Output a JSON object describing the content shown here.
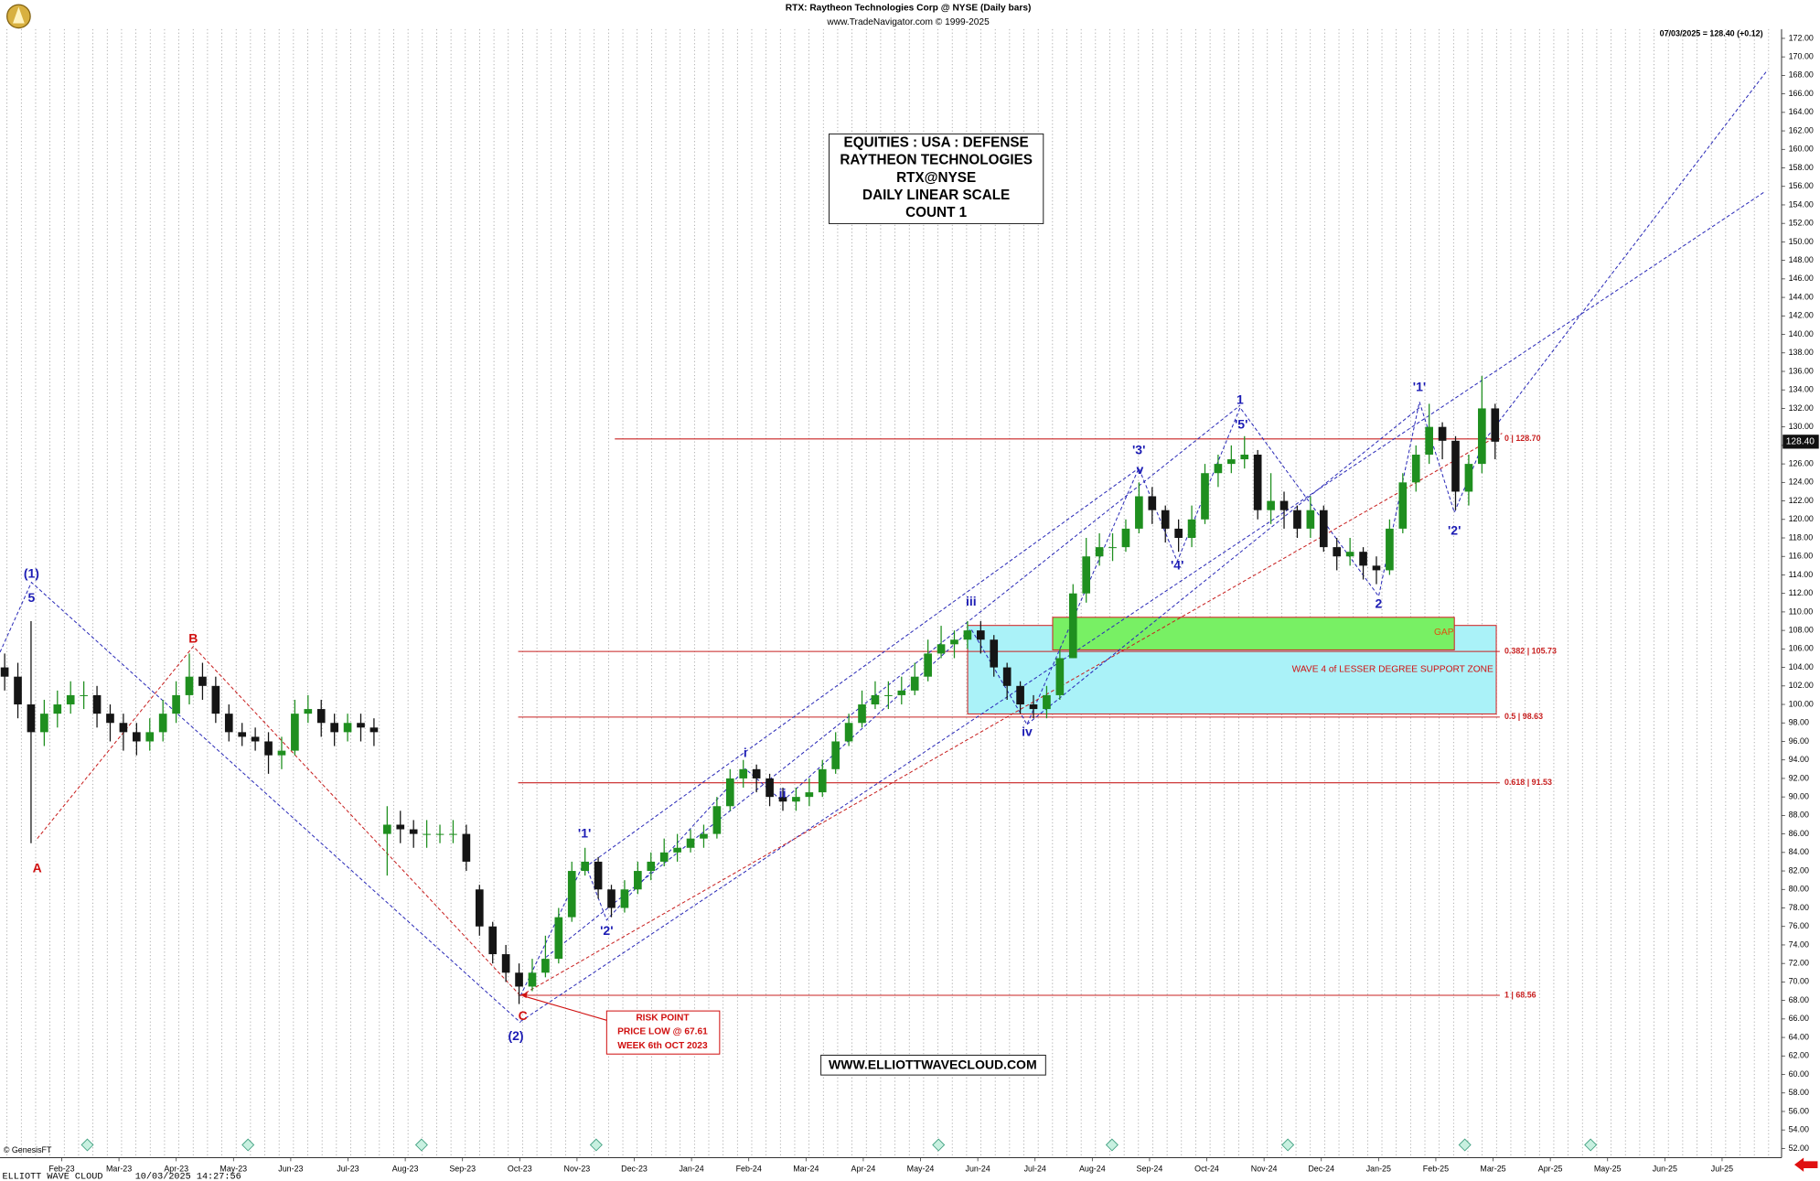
{
  "chart_data": {
    "type": "candlestick",
    "title": "RTX:  Raytheon Technologies Corp @ NYSE  (Daily bars)",
    "subtitle": "www.TradeNavigator.com © 1999-2025",
    "last_quote": "07/03/2025 = 128.40 (+0.12)",
    "last_price": {
      "value": 128.4,
      "label": "128.40"
    },
    "categories": [
      "Feb-23",
      "Mar-23",
      "Apr-23",
      "May-23",
      "Jun-23",
      "Jul-23",
      "Aug-23",
      "Sep-23",
      "Oct-23",
      "Nov-23",
      "Dec-23",
      "Jan-24",
      "Feb-24",
      "Mar-24",
      "Apr-24",
      "May-24",
      "Jun-24",
      "Jul-24",
      "Aug-24",
      "Sep-24",
      "Oct-24",
      "Nov-24",
      "Dec-24",
      "Jan-25",
      "Feb-25",
      "Mar-25",
      "Apr-25",
      "May-25",
      "Jun-25",
      "Jul-25"
    ],
    "open": [
      104,
      103,
      100,
      97,
      99,
      100,
      101,
      101,
      99,
      98,
      97,
      96,
      97,
      99,
      101,
      103,
      102,
      99,
      97,
      96.5,
      96,
      94.5,
      95,
      99,
      99.5,
      98,
      97,
      98,
      97.5,
      86,
      87,
      86.5,
      86,
      86,
      86,
      86,
      80,
      76,
      73,
      71,
      69.5,
      71,
      72.5,
      77,
      82,
      83,
      80,
      78,
      80,
      82,
      83,
      84,
      84.5,
      85.5,
      86,
      89,
      92,
      93,
      92,
      90,
      89.5,
      90,
      90.5,
      93,
      96,
      98,
      100,
      101,
      101,
      101.5,
      103,
      105.5,
      106.5,
      107,
      108,
      107,
      104,
      102,
      100,
      99.5,
      101,
      105,
      112,
      116,
      117,
      117,
      119,
      122.5,
      121,
      119,
      118,
      120,
      125,
      126,
      126.5,
      127,
      121,
      122,
      121,
      119,
      121,
      117,
      116,
      116.5,
      115,
      114.5,
      119,
      124,
      127,
      130,
      128.5,
      123,
      126,
      132
    ],
    "high": [
      105.5,
      104.5,
      109,
      100.5,
      101.5,
      102.5,
      102.5,
      102,
      100,
      99,
      98,
      98.5,
      100.5,
      102.5,
      105.5,
      104.5,
      103,
      100,
      98,
      97.5,
      97,
      96.5,
      100.5,
      101,
      100.5,
      99,
      99,
      99,
      98.5,
      89,
      88.5,
      87.5,
      87.5,
      87,
      87.5,
      87,
      80.5,
      76.5,
      74,
      72,
      72.5,
      75,
      78,
      83,
      84.5,
      83.5,
      80.5,
      81,
      83,
      84,
      85.5,
      86,
      86.5,
      87,
      90,
      93,
      94,
      93.5,
      92.5,
      91,
      91,
      92,
      94,
      97,
      99,
      101.5,
      102.5,
      102.5,
      103,
      104.5,
      107,
      108.5,
      108,
      109,
      109,
      107.5,
      104.5,
      102.5,
      101,
      102,
      106,
      113,
      118,
      118.5,
      118.5,
      120,
      124,
      123.5,
      121.5,
      120,
      121.5,
      126,
      127,
      128,
      129,
      127.5,
      125,
      123,
      121.5,
      122.5,
      121.5,
      118,
      118,
      117,
      116,
      120,
      125,
      128,
      132.5,
      130.5,
      129,
      127,
      135.5,
      132.5
    ],
    "low": [
      101.5,
      98.5,
      85,
      95.5,
      97.5,
      99,
      99.5,
      97.5,
      96,
      95,
      94.5,
      95,
      96,
      98,
      100,
      100.5,
      98,
      96,
      95.5,
      95,
      92.5,
      93,
      94.5,
      98,
      96.5,
      95.5,
      96,
      96,
      95.5,
      81.5,
      85,
      84.5,
      84.5,
      85,
      85,
      82,
      75,
      72,
      70,
      67.61,
      69,
      70.5,
      72,
      76.5,
      81.5,
      79,
      77,
      77.5,
      79.5,
      81,
      82.5,
      83,
      84,
      84.5,
      85.5,
      88.5,
      91,
      90.5,
      89,
      88.5,
      88.5,
      89,
      90,
      92.5,
      95.5,
      97.5,
      99.5,
      99.5,
      100,
      101,
      102.5,
      105,
      105,
      106,
      105.5,
      103,
      100.5,
      99,
      98.5,
      98.5,
      100.5,
      105,
      111,
      115,
      115.5,
      116.5,
      118.5,
      119.5,
      117.5,
      116.5,
      117,
      119.5,
      123.5,
      125,
      125.5,
      120,
      119.5,
      119,
      118,
      118,
      116.5,
      114.5,
      115,
      113.5,
      113,
      114,
      118.5,
      123,
      126,
      126.5,
      121,
      121.5,
      125,
      126.5
    ],
    "close": [
      103,
      100,
      97,
      99,
      100,
      101,
      101,
      99,
      98,
      97,
      96,
      97,
      99,
      101,
      103,
      102,
      99,
      97,
      96.5,
      96,
      94.5,
      95,
      99,
      99.5,
      98,
      97,
      98,
      97.5,
      97,
      87,
      86.5,
      86,
      86,
      86,
      86,
      83,
      76,
      73,
      71,
      69.5,
      71,
      72.5,
      77,
      82,
      83,
      80,
      78,
      80,
      82,
      83,
      84,
      84.5,
      85.5,
      86,
      89,
      92,
      93,
      92,
      90,
      89.5,
      90,
      90.5,
      93,
      96,
      98,
      100,
      101,
      101,
      101.5,
      103,
      105.5,
      106.5,
      107,
      108,
      107,
      104,
      102,
      100,
      99.5,
      101,
      105,
      112,
      116,
      117,
      117,
      119,
      122.5,
      121,
      119,
      118,
      120,
      125,
      126,
      126.5,
      127,
      121,
      122,
      121,
      119,
      121,
      117,
      116,
      116.5,
      115,
      114.5,
      119,
      124,
      127,
      130,
      128.5,
      123,
      126,
      132,
      128.4
    ],
    "up_color": "#1f8f1f",
    "down_color": "#151515",
    "ylim": [
      51,
      173
    ],
    "yticks": [
      {
        "value": 52,
        "label": "52.00"
      },
      {
        "value": 54,
        "label": "54.00"
      },
      {
        "value": 56,
        "label": "56.00"
      },
      {
        "value": 58,
        "label": "58.00"
      },
      {
        "value": 60,
        "label": "60.00"
      },
      {
        "value": 62,
        "label": "62.00"
      },
      {
        "value": 64,
        "label": "64.00"
      },
      {
        "value": 66,
        "label": "66.00"
      },
      {
        "value": 68,
        "label": "68.00"
      },
      {
        "value": 70,
        "label": "70.00"
      },
      {
        "value": 72,
        "label": "72.00"
      },
      {
        "value": 74,
        "label": "74.00"
      },
      {
        "value": 76,
        "label": "76.00"
      },
      {
        "value": 78,
        "label": "78.00"
      },
      {
        "value": 80,
        "label": "80.00"
      },
      {
        "value": 82,
        "label": "82.00"
      },
      {
        "value": 84,
        "label": "84.00"
      },
      {
        "value": 86,
        "label": "86.00"
      },
      {
        "value": 88,
        "label": "88.00"
      },
      {
        "value": 90,
        "label": "90.00"
      },
      {
        "value": 92,
        "label": "92.00"
      },
      {
        "value": 94,
        "label": "94.00"
      },
      {
        "value": 96,
        "label": "96.00"
      },
      {
        "value": 98,
        "label": "98.00"
      },
      {
        "value": 100,
        "label": "100.00"
      },
      {
        "value": 102,
        "label": "102.00"
      },
      {
        "value": 104,
        "label": "104.00"
      },
      {
        "value": 106,
        "label": "106.00"
      },
      {
        "value": 108,
        "label": "108.00"
      },
      {
        "value": 110,
        "label": "110.00"
      },
      {
        "value": 112,
        "label": "112.00"
      },
      {
        "value": 114,
        "label": "114.00"
      },
      {
        "value": 116,
        "label": "116.00"
      },
      {
        "value": 118,
        "label": "118.00"
      },
      {
        "value": 120,
        "label": "120.00"
      },
      {
        "value": 122,
        "label": "122.00"
      },
      {
        "value": 124,
        "label": "124.00"
      },
      {
        "value": 126,
        "label": "126.00"
      },
      {
        "value": 128,
        "label": "128.00"
      },
      {
        "value": 130,
        "label": "130.00"
      },
      {
        "value": 132,
        "label": "132.00"
      },
      {
        "value": 134,
        "label": "134.00"
      },
      {
        "value": 136,
        "label": "136.00"
      },
      {
        "value": 138,
        "label": "138.00"
      },
      {
        "value": 140,
        "label": "140.00"
      },
      {
        "value": 142,
        "label": "142.00"
      },
      {
        "value": 144,
        "label": "144.00"
      },
      {
        "value": 146,
        "label": "146.00"
      },
      {
        "value": 148,
        "label": "148.00"
      },
      {
        "value": 150,
        "label": "150.00"
      },
      {
        "value": 152,
        "label": "152.00"
      },
      {
        "value": 154,
        "label": "154.00"
      },
      {
        "value": 156,
        "label": "156.00"
      },
      {
        "value": 158,
        "label": "158.00"
      },
      {
        "value": 160,
        "label": "160.00"
      },
      {
        "value": 162,
        "label": "162.00"
      },
      {
        "value": 164,
        "label": "164.00"
      },
      {
        "value": 166,
        "label": "166.00"
      },
      {
        "value": 168,
        "label": "168.00"
      },
      {
        "value": 170,
        "label": "170.00"
      },
      {
        "value": 172,
        "label": "172.00"
      }
    ],
    "fib_color": "#c82020",
    "fib_levels": [
      {
        "value": 128.7,
        "label": "0 | 128.70"
      },
      {
        "value": 105.73,
        "label": "0.382 | 105.73"
      },
      {
        "value": 98.63,
        "label": "0.5 | 98.63"
      },
      {
        "value": 91.53,
        "label": "0.618 | 91.53"
      },
      {
        "value": 68.56,
        "label": "1 | 68.56"
      }
    ],
    "wave_labels": [
      {
        "text": "(1)",
        "color": "#1c1cb4"
      },
      {
        "text": "5",
        "color": "#1c1cb4"
      },
      {
        "text": "A",
        "color": "#d01010"
      },
      {
        "text": "B",
        "color": "#d01010"
      },
      {
        "text": "C",
        "color": "#d01010"
      },
      {
        "text": "(2)",
        "color": "#1c1cb4"
      },
      {
        "text": "'1'",
        "color": "#1c1cb4"
      },
      {
        "text": "'2'",
        "color": "#1c1cb4"
      },
      {
        "text": "i",
        "color": "#1c1cb4"
      },
      {
        "text": "ii",
        "color": "#1c1cb4"
      },
      {
        "text": "iii",
        "color": "#1c1cb4"
      },
      {
        "text": "iv",
        "color": "#1c1cb4"
      },
      {
        "text": "'3'",
        "color": "#1c1cb4"
      },
      {
        "text": "v",
        "color": "#1c1cb4"
      },
      {
        "text": "'4'",
        "color": "#1c1cb4"
      },
      {
        "text": "1",
        "color": "#1c1cb4"
      },
      {
        "text": "'5'",
        "color": "#1c1cb4"
      },
      {
        "text": "2",
        "color": "#1c1cb4"
      },
      {
        "text": "'1'",
        "color": "#1c1cb4"
      },
      {
        "text": "'2'",
        "color": "#1c1cb4"
      }
    ],
    "gap_label": "GAP",
    "zone_label": "WAVE 4 of LESSER DEGREE SUPPORT ZONE",
    "info_box": [
      "EQUITIES : USA : DEFENSE",
      "RAYTHEON TECHNOLOGIES",
      "RTX@NYSE",
      "DAILY LINEAR SCALE",
      "COUNT 1"
    ],
    "risk_box": [
      "RISK POINT",
      "PRICE LOW @ 67.61",
      "WEEK 6th OCT 2023"
    ],
    "website": "WWW.ELLIOTTWAVECLOUD.COM",
    "copyright": "© GenesisFT",
    "brand": "ELLIOTT WAVE CLOUD",
    "timestamp": "10/03/2025 14:27:56"
  }
}
